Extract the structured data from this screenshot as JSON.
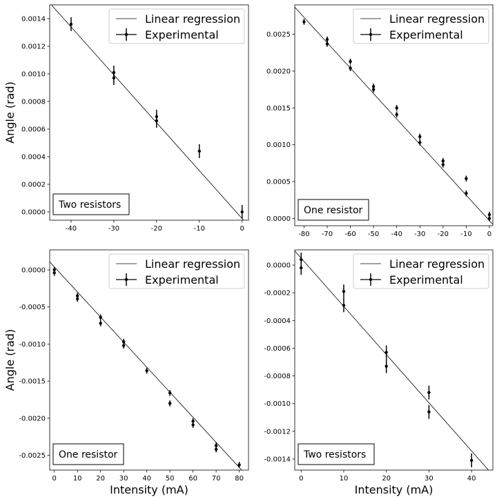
{
  "chart_data": [
    {
      "type": "scatter",
      "xlabel": "",
      "ylabel": "Angle (rad)",
      "annotation": "Two resistors",
      "legend": {
        "position": "top-right",
        "entries": [
          "Linear regression",
          "Experimental"
        ]
      },
      "xlim": [
        -45,
        1.5
      ],
      "ylim": [
        -6e-05,
        0.0015
      ],
      "xticks": [
        "-40",
        "-30",
        "-20",
        "-10",
        "0"
      ],
      "xtick_values": [
        -40,
        -30,
        -20,
        -10,
        0
      ],
      "yticks": [
        "0.0000",
        "0.0002",
        "0.0004",
        "0.0006",
        "0.0008",
        "0.0010",
        "0.0012",
        "0.0014"
      ],
      "ytick_values": [
        0,
        0.0002,
        0.0004,
        0.0006,
        0.0008,
        0.001,
        0.0012,
        0.0014
      ],
      "points": [
        {
          "x": -40,
          "y": 0.00136,
          "yerr": 5e-05
        },
        {
          "x": -30,
          "y": 0.00101,
          "yerr": 5e-05
        },
        {
          "x": -30,
          "y": 0.00097,
          "yerr": 5e-05
        },
        {
          "x": -20,
          "y": 0.00069,
          "yerr": 5e-05
        },
        {
          "x": -20,
          "y": 0.00066,
          "yerr": 5e-05
        },
        {
          "x": -10,
          "y": 0.00044,
          "yerr": 5e-05
        },
        {
          "x": 0,
          "y": 0.0,
          "yerr": 5e-05
        }
      ],
      "regression": {
        "slope": -3.47e-05,
        "intercept": -4.8e-05
      }
    },
    {
      "type": "scatter",
      "xlabel": "",
      "ylabel": "",
      "annotation": "One resistor",
      "legend": {
        "position": "top-right",
        "entries": [
          "Linear regression",
          "Experimental"
        ]
      },
      "xlim": [
        -84,
        1.5
      ],
      "ylim": [
        -0.0001,
        0.0029
      ],
      "xticks": [
        "-80",
        "-70",
        "-60",
        "-50",
        "-40",
        "-30",
        "-20",
        "-10",
        "0"
      ],
      "xtick_values": [
        -80,
        -70,
        -60,
        -50,
        -40,
        -30,
        -20,
        -10,
        0
      ],
      "yticks": [
        "0.0000",
        "0.0005",
        "0.0010",
        "0.0015",
        "0.0020",
        "0.0025"
      ],
      "ytick_values": [
        0,
        0.0005,
        0.001,
        0.0015,
        0.002,
        0.0025
      ],
      "points": [
        {
          "x": -80,
          "y": 0.00267,
          "yerr": 4e-05
        },
        {
          "x": -70,
          "y": 0.00243,
          "yerr": 4e-05
        },
        {
          "x": -70,
          "y": 0.00237,
          "yerr": 4e-05
        },
        {
          "x": -60,
          "y": 0.00213,
          "yerr": 4e-05
        },
        {
          "x": -60,
          "y": 0.00204,
          "yerr": 4e-05
        },
        {
          "x": -50,
          "y": 0.00179,
          "yerr": 4e-05
        },
        {
          "x": -50,
          "y": 0.00175,
          "yerr": 4e-05
        },
        {
          "x": -40,
          "y": 0.0015,
          "yerr": 4e-05
        },
        {
          "x": -40,
          "y": 0.00141,
          "yerr": 4e-05
        },
        {
          "x": -30,
          "y": 0.00111,
          "yerr": 4e-05
        },
        {
          "x": -30,
          "y": 0.00103,
          "yerr": 4e-05
        },
        {
          "x": -20,
          "y": 0.00078,
          "yerr": 4e-05
        },
        {
          "x": -20,
          "y": 0.00073,
          "yerr": 4e-05
        },
        {
          "x": -10,
          "y": 0.00054,
          "yerr": 4e-05
        },
        {
          "x": -10,
          "y": 0.00034,
          "yerr": 4e-05
        },
        {
          "x": 0,
          "y": 5e-05,
          "yerr": 4e-05
        },
        {
          "x": 0,
          "y": 0.0,
          "yerr": 4e-05
        }
      ],
      "regression": {
        "slope": -3.45e-05,
        "intercept": -3e-05
      }
    },
    {
      "type": "scatter",
      "xlabel": "Intensity (mA)",
      "ylabel": "Angle (rad)",
      "annotation": "One resistor",
      "legend": {
        "position": "top-right",
        "entries": [
          "Linear regression",
          "Experimental"
        ]
      },
      "xlim": [
        -2,
        84
      ],
      "ylim": [
        -0.0027,
        0.00027
      ],
      "xticks": [
        "0",
        "10",
        "20",
        "30",
        "40",
        "50",
        "60",
        "70",
        "80"
      ],
      "xtick_values": [
        0,
        10,
        20,
        30,
        40,
        50,
        60,
        70,
        80
      ],
      "yticks": [
        "0.0000",
        "-0.0005",
        "-0.0010",
        "-0.0015",
        "-0.0020",
        "-0.0025"
      ],
      "ytick_values": [
        0,
        -0.0005,
        -0.001,
        -0.0015,
        -0.002,
        -0.0025
      ],
      "points": [
        {
          "x": 0,
          "y": 0.0,
          "yerr": 4e-05
        },
        {
          "x": 0,
          "y": -4e-05,
          "yerr": 4e-05
        },
        {
          "x": 10,
          "y": -0.00035,
          "yerr": 4e-05
        },
        {
          "x": 10,
          "y": -0.00039,
          "yerr": 4e-05
        },
        {
          "x": 20,
          "y": -0.00064,
          "yerr": 4e-05
        },
        {
          "x": 20,
          "y": -0.00072,
          "yerr": 4e-05
        },
        {
          "x": 30,
          "y": -0.00097,
          "yerr": 4e-05
        },
        {
          "x": 30,
          "y": -0.00102,
          "yerr": 4e-05
        },
        {
          "x": 40,
          "y": -0.00136,
          "yerr": 4e-05
        },
        {
          "x": 50,
          "y": -0.00166,
          "yerr": 4e-05
        },
        {
          "x": 50,
          "y": -0.0018,
          "yerr": 4e-05
        },
        {
          "x": 60,
          "y": -0.00204,
          "yerr": 4e-05
        },
        {
          "x": 60,
          "y": -0.00209,
          "yerr": 4e-05
        },
        {
          "x": 70,
          "y": -0.00237,
          "yerr": 4e-05
        },
        {
          "x": 70,
          "y": -0.00242,
          "yerr": 4e-05
        },
        {
          "x": 80,
          "y": -0.00263,
          "yerr": 4e-05
        }
      ],
      "regression": {
        "slope": -3.38e-05,
        "intercept": 4e-05
      }
    },
    {
      "type": "scatter",
      "xlabel": "Intensity (mA)",
      "ylabel": "",
      "annotation": "Two resistors",
      "legend": {
        "position": "top-right",
        "entries": [
          "Linear regression",
          "Experimental"
        ]
      },
      "xlim": [
        -1.5,
        45
      ],
      "ylim": [
        -0.00148,
        0.00011
      ],
      "xticks": [
        "0",
        "10",
        "20",
        "30",
        "40"
      ],
      "xtick_values": [
        0,
        10,
        20,
        30,
        40
      ],
      "yticks": [
        "0.0000",
        "-0.0002",
        "-0.0004",
        "-0.0006",
        "-0.0008",
        "-0.0010",
        "-0.0012",
        "-0.0014"
      ],
      "ytick_values": [
        0,
        -0.0002,
        -0.0004,
        -0.0006,
        -0.0008,
        -0.001,
        -0.0012,
        -0.0014
      ],
      "points": [
        {
          "x": 0,
          "y": 4e-05,
          "yerr": 5e-05
        },
        {
          "x": 0,
          "y": -2e-05,
          "yerr": 5e-05
        },
        {
          "x": 10,
          "y": -0.00019,
          "yerr": 5e-05
        },
        {
          "x": 10,
          "y": -0.00029,
          "yerr": 5e-05
        },
        {
          "x": 20,
          "y": -0.00063,
          "yerr": 5e-05
        },
        {
          "x": 20,
          "y": -0.00073,
          "yerr": 5e-05
        },
        {
          "x": 30,
          "y": -0.00092,
          "yerr": 5e-05
        },
        {
          "x": 30,
          "y": -0.00106,
          "yerr": 5e-05
        },
        {
          "x": 40,
          "y": -0.00141,
          "yerr": 5e-05
        }
      ],
      "regression": {
        "slope": -3.48e-05,
        "intercept": 5e-05
      }
    }
  ]
}
